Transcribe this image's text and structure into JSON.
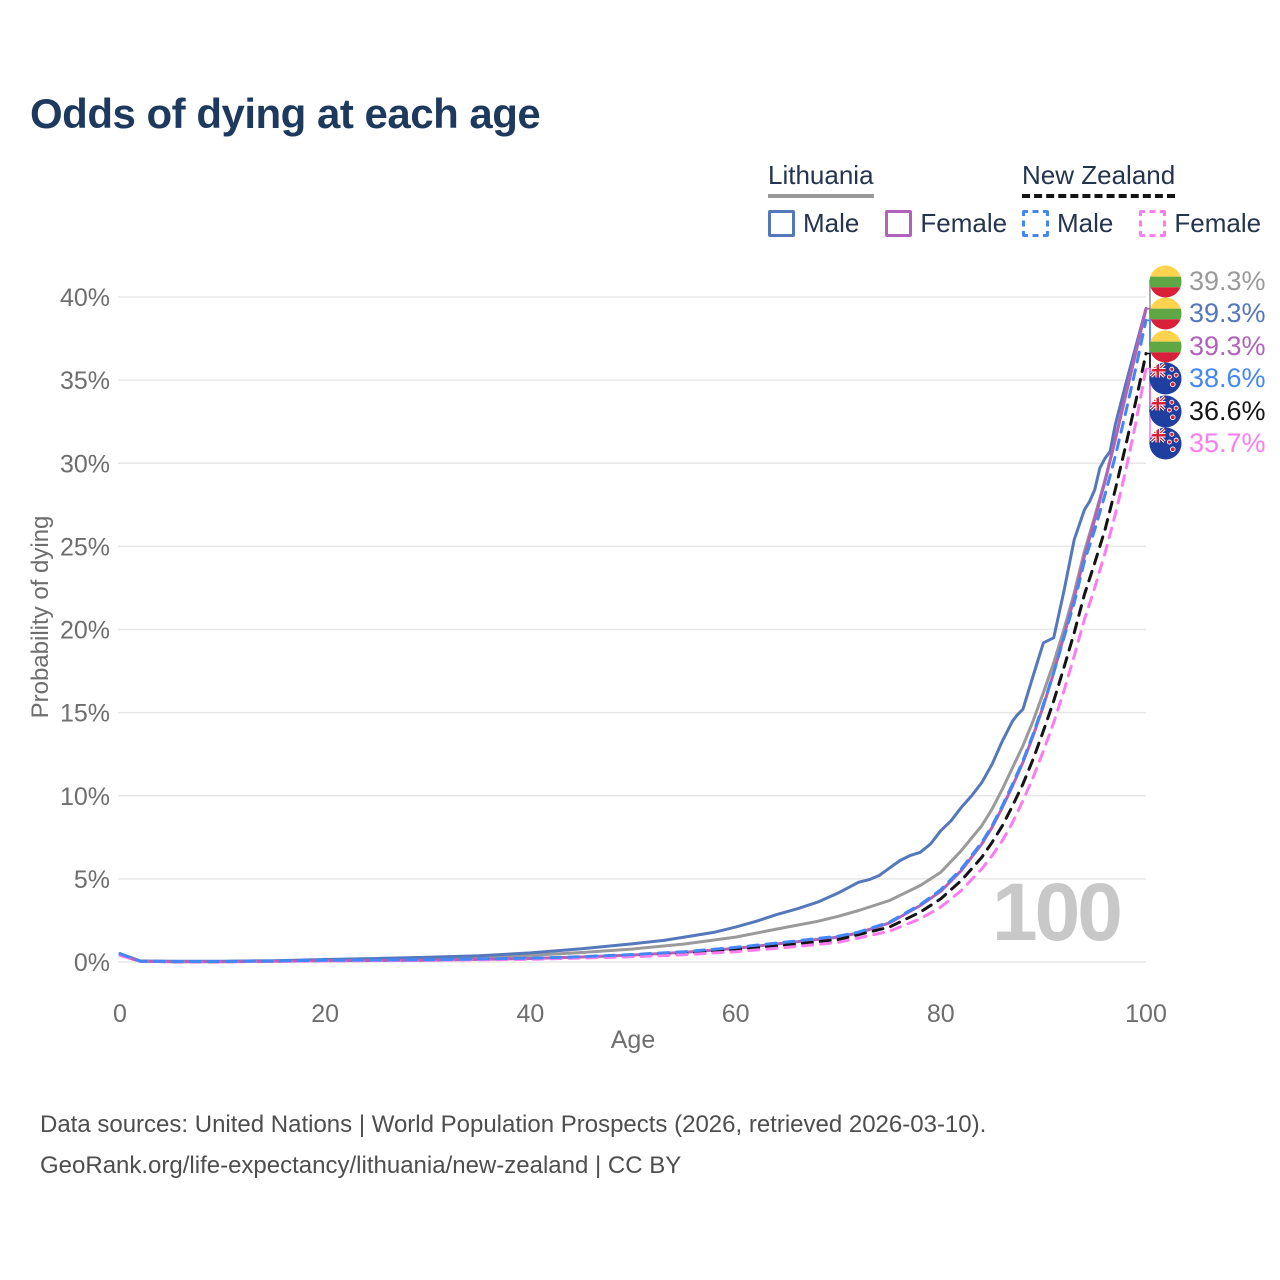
{
  "title": "Odds of dying at each age",
  "hover_age_indicator": "100",
  "legend": {
    "groups": [
      {
        "name": "Lithuania",
        "underline": "solid",
        "underline_color": "#9a9a9a",
        "items": [
          {
            "label": "Male",
            "color": "#5578bb",
            "dashed": false
          },
          {
            "label": "Female",
            "color": "#b162ba",
            "dashed": false
          }
        ]
      },
      {
        "name": "New Zealand",
        "underline": "dashed",
        "underline_color": "#141414",
        "items": [
          {
            "label": "Male",
            "color": "#4387f4",
            "dashed": true
          },
          {
            "label": "Female",
            "color": "#fc7cf0",
            "dashed": true
          }
        ]
      }
    ]
  },
  "footer": {
    "line1": "Data sources: United Nations | World Population Prospects (2026, retrieved 2026-03-10).",
    "line2": "GeoRank.org/life-expectancy/lithuania/new-zealand | CC BY"
  },
  "chart_data": {
    "type": "line",
    "title": "Odds of dying at each age",
    "xlabel": "Age",
    "ylabel": "Probability of dying",
    "xlim": [
      0,
      100
    ],
    "ylim": [
      0,
      40
    ],
    "x_ticks": [
      0,
      20,
      40,
      60,
      80,
      100
    ],
    "y_ticks": [
      0,
      5,
      10,
      15,
      20,
      25,
      30,
      35,
      40
    ],
    "y_tick_suffix": "%",
    "grid": "horizontal",
    "legend_position": "top-right",
    "axis_color": "#6e6e6e",
    "grid_color": "#e8e8e8",
    "series": [
      {
        "name": "Lithuania (both sexes)",
        "flag": "lt",
        "color": "#9a9a9a",
        "dash": "solid",
        "end_label": "39.3%",
        "points": [
          [
            0,
            0.45
          ],
          [
            2,
            0.05
          ],
          [
            5,
            0.03
          ],
          [
            10,
            0.03
          ],
          [
            15,
            0.06
          ],
          [
            20,
            0.11
          ],
          [
            25,
            0.15
          ],
          [
            30,
            0.21
          ],
          [
            35,
            0.29
          ],
          [
            40,
            0.4
          ],
          [
            45,
            0.57
          ],
          [
            50,
            0.78
          ],
          [
            55,
            1.08
          ],
          [
            60,
            1.5
          ],
          [
            65,
            2.1
          ],
          [
            68,
            2.45
          ],
          [
            70,
            2.75
          ],
          [
            72,
            3.1
          ],
          [
            75,
            3.7
          ],
          [
            78,
            4.6
          ],
          [
            80,
            5.4
          ],
          [
            82,
            6.7
          ],
          [
            84,
            8.2
          ],
          [
            85,
            9.2
          ],
          [
            86,
            10.4
          ],
          [
            87,
            11.7
          ],
          [
            88,
            13.0
          ],
          [
            89,
            14.5
          ],
          [
            90,
            16.2
          ],
          [
            91,
            18.0
          ],
          [
            92,
            20.0
          ],
          [
            93,
            22.2
          ],
          [
            94,
            24.7
          ],
          [
            95,
            26.8
          ],
          [
            96,
            29.0
          ],
          [
            97,
            31.4
          ],
          [
            98,
            34.0
          ],
          [
            99,
            36.6
          ],
          [
            100,
            39.3
          ]
        ]
      },
      {
        "name": "Lithuania Male",
        "flag": "lt",
        "color": "#5578bb",
        "dash": "solid",
        "end_label": "39.3%",
        "points": [
          [
            0,
            0.5
          ],
          [
            2,
            0.06
          ],
          [
            5,
            0.04
          ],
          [
            10,
            0.04
          ],
          [
            15,
            0.08
          ],
          [
            20,
            0.15
          ],
          [
            25,
            0.21
          ],
          [
            30,
            0.28
          ],
          [
            35,
            0.38
          ],
          [
            40,
            0.55
          ],
          [
            45,
            0.8
          ],
          [
            50,
            1.1
          ],
          [
            53,
            1.3
          ],
          [
            55,
            1.5
          ],
          [
            58,
            1.8
          ],
          [
            60,
            2.1
          ],
          [
            62,
            2.45
          ],
          [
            64,
            2.85
          ],
          [
            66,
            3.2
          ],
          [
            68,
            3.6
          ],
          [
            70,
            4.15
          ],
          [
            72,
            4.8
          ],
          [
            73,
            4.95
          ],
          [
            74,
            5.2
          ],
          [
            76,
            6.1
          ],
          [
            77,
            6.4
          ],
          [
            78,
            6.6
          ],
          [
            79,
            7.1
          ],
          [
            80,
            7.9
          ],
          [
            81,
            8.5
          ],
          [
            82,
            9.3
          ],
          [
            83,
            10.0
          ],
          [
            84,
            10.8
          ],
          [
            85,
            11.9
          ],
          [
            86,
            13.3
          ],
          [
            87,
            14.5
          ],
          [
            87.5,
            14.9
          ],
          [
            88,
            15.2
          ],
          [
            89,
            17.2
          ],
          [
            90,
            19.2
          ],
          [
            91,
            19.5
          ],
          [
            92,
            22.3
          ],
          [
            93,
            25.4
          ],
          [
            94,
            27.2
          ],
          [
            94.5,
            27.7
          ],
          [
            95,
            28.4
          ],
          [
            95.5,
            29.7
          ],
          [
            96,
            30.3
          ],
          [
            96.5,
            30.7
          ],
          [
            97,
            32.3
          ],
          [
            98,
            34.7
          ],
          [
            99,
            37.0
          ],
          [
            100,
            39.3
          ]
        ]
      },
      {
        "name": "Lithuania Female",
        "flag": "lt",
        "color": "#b162ba",
        "dash": "solid",
        "end_label": "39.3%",
        "points": [
          [
            0,
            0.4
          ],
          [
            2,
            0.04
          ],
          [
            5,
            0.02
          ],
          [
            10,
            0.02
          ],
          [
            15,
            0.04
          ],
          [
            20,
            0.07
          ],
          [
            30,
            0.11
          ],
          [
            40,
            0.21
          ],
          [
            45,
            0.3
          ],
          [
            50,
            0.42
          ],
          [
            55,
            0.58
          ],
          [
            60,
            0.82
          ],
          [
            65,
            1.15
          ],
          [
            70,
            1.5
          ],
          [
            72,
            1.75
          ],
          [
            75,
            2.35
          ],
          [
            78,
            3.4
          ],
          [
            80,
            4.25
          ],
          [
            82,
            5.5
          ],
          [
            84,
            7.1
          ],
          [
            85,
            8.1
          ],
          [
            86,
            9.3
          ],
          [
            87,
            10.6
          ],
          [
            88,
            12.0
          ],
          [
            89,
            13.6
          ],
          [
            90,
            15.4
          ],
          [
            91,
            17.4
          ],
          [
            92,
            19.6
          ],
          [
            93,
            21.9
          ],
          [
            94,
            24.4
          ],
          [
            95,
            26.6
          ],
          [
            96,
            28.9
          ],
          [
            97,
            31.4
          ],
          [
            98,
            34.1
          ],
          [
            99,
            36.7
          ],
          [
            100,
            39.3
          ]
        ]
      },
      {
        "name": "New Zealand Male",
        "flag": "nz",
        "color": "#4387f4",
        "dash": "dashed",
        "end_label": "38.6%",
        "points": [
          [
            0,
            0.5
          ],
          [
            2,
            0.05
          ],
          [
            5,
            0.03
          ],
          [
            10,
            0.03
          ],
          [
            15,
            0.06
          ],
          [
            20,
            0.1
          ],
          [
            30,
            0.14
          ],
          [
            40,
            0.23
          ],
          [
            45,
            0.32
          ],
          [
            50,
            0.45
          ],
          [
            55,
            0.62
          ],
          [
            60,
            0.88
          ],
          [
            65,
            1.2
          ],
          [
            70,
            1.55
          ],
          [
            72,
            1.8
          ],
          [
            75,
            2.4
          ],
          [
            78,
            3.45
          ],
          [
            80,
            4.35
          ],
          [
            82,
            5.6
          ],
          [
            84,
            7.2
          ],
          [
            85,
            8.2
          ],
          [
            86,
            9.4
          ],
          [
            87,
            10.7
          ],
          [
            88,
            12.1
          ],
          [
            89,
            13.7
          ],
          [
            90,
            15.5
          ],
          [
            91,
            17.4
          ],
          [
            92,
            19.5
          ],
          [
            93,
            21.6
          ],
          [
            94,
            24.1
          ],
          [
            95,
            26.0
          ],
          [
            96,
            28.1
          ],
          [
            97,
            30.4
          ],
          [
            98,
            33.0
          ],
          [
            99,
            35.7
          ],
          [
            100,
            38.6
          ]
        ]
      },
      {
        "name": "New Zealand (both sexes)",
        "flag": "nz",
        "color": "#141414",
        "dash": "dashed",
        "end_label": "36.6%",
        "points": [
          [
            0,
            0.45
          ],
          [
            2,
            0.05
          ],
          [
            5,
            0.02
          ],
          [
            10,
            0.02
          ],
          [
            15,
            0.05
          ],
          [
            20,
            0.08
          ],
          [
            30,
            0.12
          ],
          [
            40,
            0.19
          ],
          [
            50,
            0.37
          ],
          [
            55,
            0.52
          ],
          [
            60,
            0.75
          ],
          [
            65,
            1.02
          ],
          [
            70,
            1.35
          ],
          [
            75,
            2.1
          ],
          [
            78,
            3.0
          ],
          [
            80,
            3.8
          ],
          [
            82,
            4.9
          ],
          [
            84,
            6.3
          ],
          [
            85,
            7.2
          ],
          [
            86,
            8.2
          ],
          [
            87,
            9.4
          ],
          [
            88,
            10.7
          ],
          [
            89,
            12.2
          ],
          [
            90,
            13.9
          ],
          [
            91,
            15.7
          ],
          [
            92,
            17.7
          ],
          [
            93,
            19.8
          ],
          [
            94,
            22.1
          ],
          [
            95,
            24.0
          ],
          [
            96,
            26.0
          ],
          [
            97,
            28.4
          ],
          [
            98,
            31.0
          ],
          [
            99,
            33.7
          ],
          [
            100,
            36.6
          ]
        ]
      },
      {
        "name": "New Zealand Female",
        "flag": "nz",
        "color": "#fc7cf0",
        "dash": "dashed",
        "end_label": "35.7%",
        "points": [
          [
            0,
            0.4
          ],
          [
            2,
            0.04
          ],
          [
            5,
            0.02
          ],
          [
            10,
            0.02
          ],
          [
            15,
            0.04
          ],
          [
            20,
            0.06
          ],
          [
            30,
            0.1
          ],
          [
            40,
            0.16
          ],
          [
            50,
            0.31
          ],
          [
            55,
            0.44
          ],
          [
            60,
            0.62
          ],
          [
            65,
            0.88
          ],
          [
            70,
            1.18
          ],
          [
            75,
            1.85
          ],
          [
            78,
            2.6
          ],
          [
            80,
            3.3
          ],
          [
            82,
            4.3
          ],
          [
            84,
            5.6
          ],
          [
            85,
            6.4
          ],
          [
            86,
            7.3
          ],
          [
            87,
            8.4
          ],
          [
            88,
            9.7
          ],
          [
            89,
            11.1
          ],
          [
            90,
            12.7
          ],
          [
            91,
            14.4
          ],
          [
            92,
            16.3
          ],
          [
            93,
            18.4
          ],
          [
            94,
            20.6
          ],
          [
            95,
            22.5
          ],
          [
            96,
            24.6
          ],
          [
            97,
            26.9
          ],
          [
            98,
            29.5
          ],
          [
            99,
            32.4
          ],
          [
            100,
            35.7
          ]
        ]
      }
    ]
  }
}
